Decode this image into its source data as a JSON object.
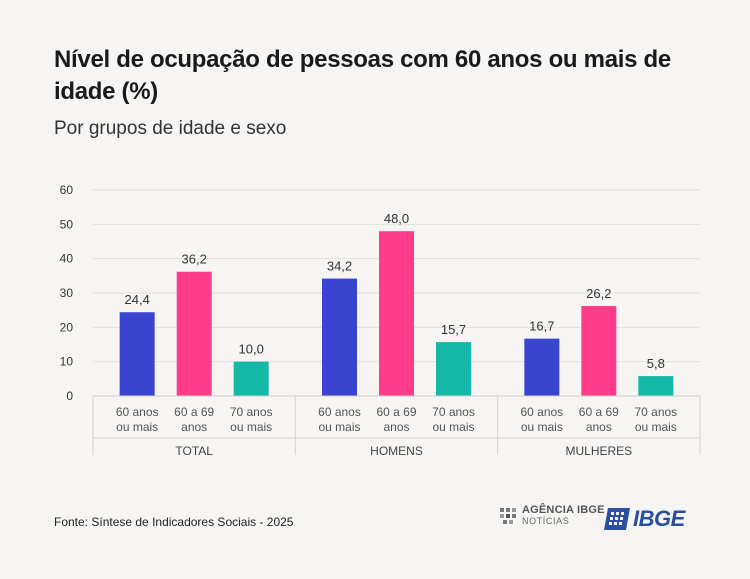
{
  "title": "Nível de ocupação de pessoas com 60 anos ou mais de idade (%)",
  "subtitle": "Por grupos de idade e sexo",
  "source": "Fonte: Síntese de Indicadores Sociais - 2025",
  "logos": {
    "agencia_line1": "AGÊNCIA IBGE",
    "agencia_line2": "NOTÍCIAS",
    "ibge": "IBGE"
  },
  "colors": {
    "series_60_mais": "#3b44d1",
    "series_60_69": "#ff3d8b",
    "series_70_mais": "#14b8a6",
    "brand_blue": "#2a4f9e"
  },
  "chart_data": {
    "type": "bar",
    "ylim": [
      0,
      60
    ],
    "yticks": [
      0,
      10,
      20,
      30,
      40,
      50,
      60
    ],
    "grid": true,
    "decimal_separator": ",",
    "groups": [
      {
        "name": "TOTAL",
        "bars": [
          {
            "label": [
              "60 anos",
              "ou mais"
            ],
            "value": 24.4,
            "color_key": "series_60_mais"
          },
          {
            "label": [
              "60 a 69",
              "anos"
            ],
            "value": 36.2,
            "color_key": "series_60_69"
          },
          {
            "label": [
              "70 anos",
              "ou mais"
            ],
            "value": 10.0,
            "color_key": "series_70_mais"
          }
        ]
      },
      {
        "name": "HOMENS",
        "bars": [
          {
            "label": [
              "60 anos",
              "ou mais"
            ],
            "value": 34.2,
            "color_key": "series_60_mais"
          },
          {
            "label": [
              "60 a 69",
              "anos"
            ],
            "value": 48.0,
            "color_key": "series_60_69"
          },
          {
            "label": [
              "70 anos",
              "ou mais"
            ],
            "value": 15.7,
            "color_key": "series_70_mais"
          }
        ]
      },
      {
        "name": "MULHERES",
        "bars": [
          {
            "label": [
              "60 anos",
              "ou mais"
            ],
            "value": 16.7,
            "color_key": "series_60_mais"
          },
          {
            "label": [
              "60 a 69",
              "anos"
            ],
            "value": 26.2,
            "color_key": "series_60_69"
          },
          {
            "label": [
              "70 anos",
              "ou mais"
            ],
            "value": 5.8,
            "color_key": "series_70_mais"
          }
        ]
      }
    ]
  }
}
